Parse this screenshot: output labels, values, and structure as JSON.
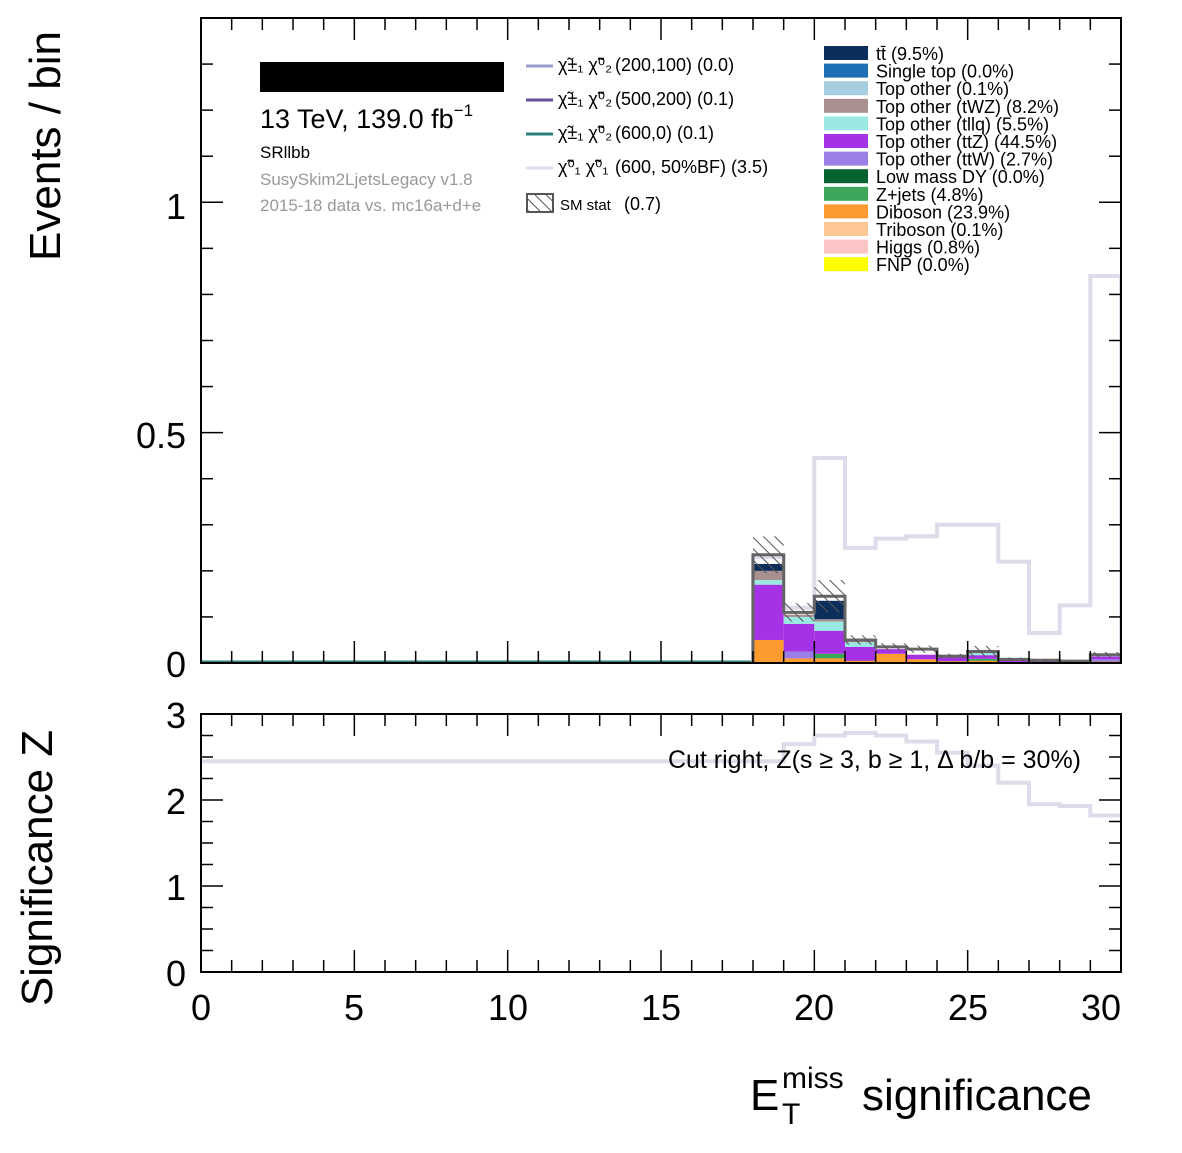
{
  "top_panel": {
    "ylabel": "Events / bin",
    "yticks": [
      "0",
      "0.5",
      "1"
    ],
    "info": {
      "energy": "13 TeV, 139.0 fb",
      "lumi_exp": "−1",
      "region": "SRllbb",
      "framework": "SusySkim2LjetsLegacy v1.8",
      "dataset": "2015-18 data vs. mc16a+d+e"
    },
    "signal_legend": [
      {
        "sym": "χ̃±₁ χ̃⁰₂",
        "label": "(200,100) (0.0)",
        "color": "#9b9bcc"
      },
      {
        "sym": "χ̃±₁ χ̃⁰₂",
        "label": "(500,200) (0.1)",
        "color": "#6a4c9c"
      },
      {
        "sym": "χ̃±₁ χ̃⁰₂",
        "label": "(600,0) (0.1)",
        "color": "#2a7f7a"
      },
      {
        "sym": "χ̃⁰₁ χ̃⁰₁",
        "label": "(600, 50%BF) (3.5)",
        "color": "#dcdcea"
      }
    ],
    "sm_stat_label": "SM stat",
    "sm_stat_value": "(0.7)",
    "bkg_legend": [
      {
        "label": "tt̄ (9.5%)",
        "color": "#0b2f5a"
      },
      {
        "label": "Single top (0.0%)",
        "color": "#1f6fb4"
      },
      {
        "label": "Top other (0.1%)",
        "color": "#a6cde0"
      },
      {
        "label": "Top other (tWZ) (8.2%)",
        "color": "#a89090"
      },
      {
        "label": "Top other (tllq) (5.5%)",
        "color": "#99e9e2"
      },
      {
        "label": "Top other (ttZ) (44.5%)",
        "color": "#a632e6"
      },
      {
        "label": "Top other (ttW) (2.7%)",
        "color": "#9b7fe6"
      },
      {
        "label": "Low mass DY (0.0%)",
        "color": "#06622e"
      },
      {
        "label": "Z+jets (4.8%)",
        "color": "#3ca65a"
      },
      {
        "label": "Diboson (23.9%)",
        "color": "#fd9a30"
      },
      {
        "label": "Triboson (0.1%)",
        "color": "#fdc896"
      },
      {
        "label": "Higgs (0.8%)",
        "color": "#fcc5c5"
      },
      {
        "label": "FNP (0.0%)",
        "color": "#ffff00"
      }
    ]
  },
  "bottom_panel": {
    "ylabel": "Significance Z",
    "yticks": [
      "0",
      "1",
      "2",
      "3"
    ],
    "annotation": "Cut right, Z(s ≥ 3, b ≥ 1, Δ b/b = 30%)"
  },
  "xaxis": {
    "label_main": "E",
    "label_sup": "miss",
    "label_sub": "T",
    "label_rest": "significance",
    "ticks": [
      "0",
      "5",
      "10",
      "15",
      "20",
      "25",
      "30"
    ]
  },
  "chart_data": [
    {
      "type": "bar",
      "stacked": true,
      "ylabel": "Events / bin",
      "xlabel": "E_T^miss significance",
      "xlim": [
        0,
        30
      ],
      "ylim": [
        0,
        1.4
      ],
      "bin_edges": [
        18,
        19,
        20,
        21,
        22,
        23,
        24,
        25,
        26,
        27,
        28,
        29,
        30
      ],
      "series": [
        {
          "name": "Diboson",
          "color": "#fd9a30",
          "values": [
            0.05,
            0.01,
            0.01,
            0.005,
            0.02,
            0.008,
            0.004,
            0.005,
            0.002,
            0.001,
            0.001,
            0.003
          ]
        },
        {
          "name": "Z+jets",
          "color": "#3ca65a",
          "values": [
            0.0,
            0.0,
            0.01,
            0.0,
            0.0,
            0.0,
            0.0,
            0.004,
            0.0,
            0.0,
            0.0,
            0.0
          ]
        },
        {
          "name": "Top other (ttW)",
          "color": "#9b7fe6",
          "values": [
            0.0,
            0.015,
            0.0,
            0.0,
            0.0,
            0.0,
            0.0,
            0.0,
            0.0,
            0.0,
            0.0,
            0.005
          ]
        },
        {
          "name": "Top other (ttZ)",
          "color": "#a632e6",
          "values": [
            0.12,
            0.06,
            0.05,
            0.03,
            0.01,
            0.01,
            0.008,
            0.008,
            0.004,
            0.003,
            0.002,
            0.006
          ]
        },
        {
          "name": "Top other (tllq)",
          "color": "#99e9e2",
          "values": [
            0.01,
            0.015,
            0.02,
            0.01,
            0.0,
            0.0,
            0.0,
            0.005,
            0.0,
            0.0,
            0.0,
            0.0
          ]
        },
        {
          "name": "Top other (tWZ)",
          "color": "#a89090",
          "values": [
            0.02,
            0.005,
            0.005,
            0.005,
            0.0,
            0.0,
            0.0,
            0.0,
            0.0,
            0.0,
            0.0,
            0.0
          ]
        },
        {
          "name": "tt̄",
          "color": "#0b2f5a",
          "values": [
            0.015,
            0.0,
            0.04,
            0.0,
            0.0,
            0.0,
            0.0,
            0.0,
            0.0,
            0.0,
            0.0,
            0.0
          ]
        }
      ],
      "sm_total": [
        0.235,
        0.11,
        0.145,
        0.05,
        0.035,
        0.03,
        0.015,
        0.025,
        0.008,
        0.006,
        0.004,
        0.018
      ],
      "sm_stat_err": [
        0.04,
        0.02,
        0.035,
        0.01,
        0.008,
        0.008,
        0.005,
        0.012,
        0.004,
        0.003,
        0.002,
        0.006
      ],
      "signal": {
        "name": "χ̃⁰₁ χ̃⁰₁ (600, 50%BF)",
        "color": "#dcdcea",
        "values": [
          0.23,
          0.12,
          0.445,
          0.25,
          0.27,
          0.275,
          0.3,
          0.3,
          0.22,
          0.065,
          0.125,
          0.84
        ]
      }
    },
    {
      "type": "line",
      "ylabel": "Significance Z",
      "xlabel": "E_T^miss significance",
      "xlim": [
        0,
        30
      ],
      "ylim": [
        0,
        3
      ],
      "annotation": "Cut right, Z(s ≥ 3, b ≥ 1, Δ b/b = 30%)",
      "step_x": [
        0,
        19,
        20,
        21,
        22,
        23,
        24,
        25,
        26,
        27,
        28,
        29,
        30
      ],
      "step_z": [
        2.45,
        2.65,
        2.75,
        2.78,
        2.75,
        2.68,
        2.55,
        2.4,
        2.2,
        1.95,
        1.93,
        1.82
      ]
    }
  ]
}
